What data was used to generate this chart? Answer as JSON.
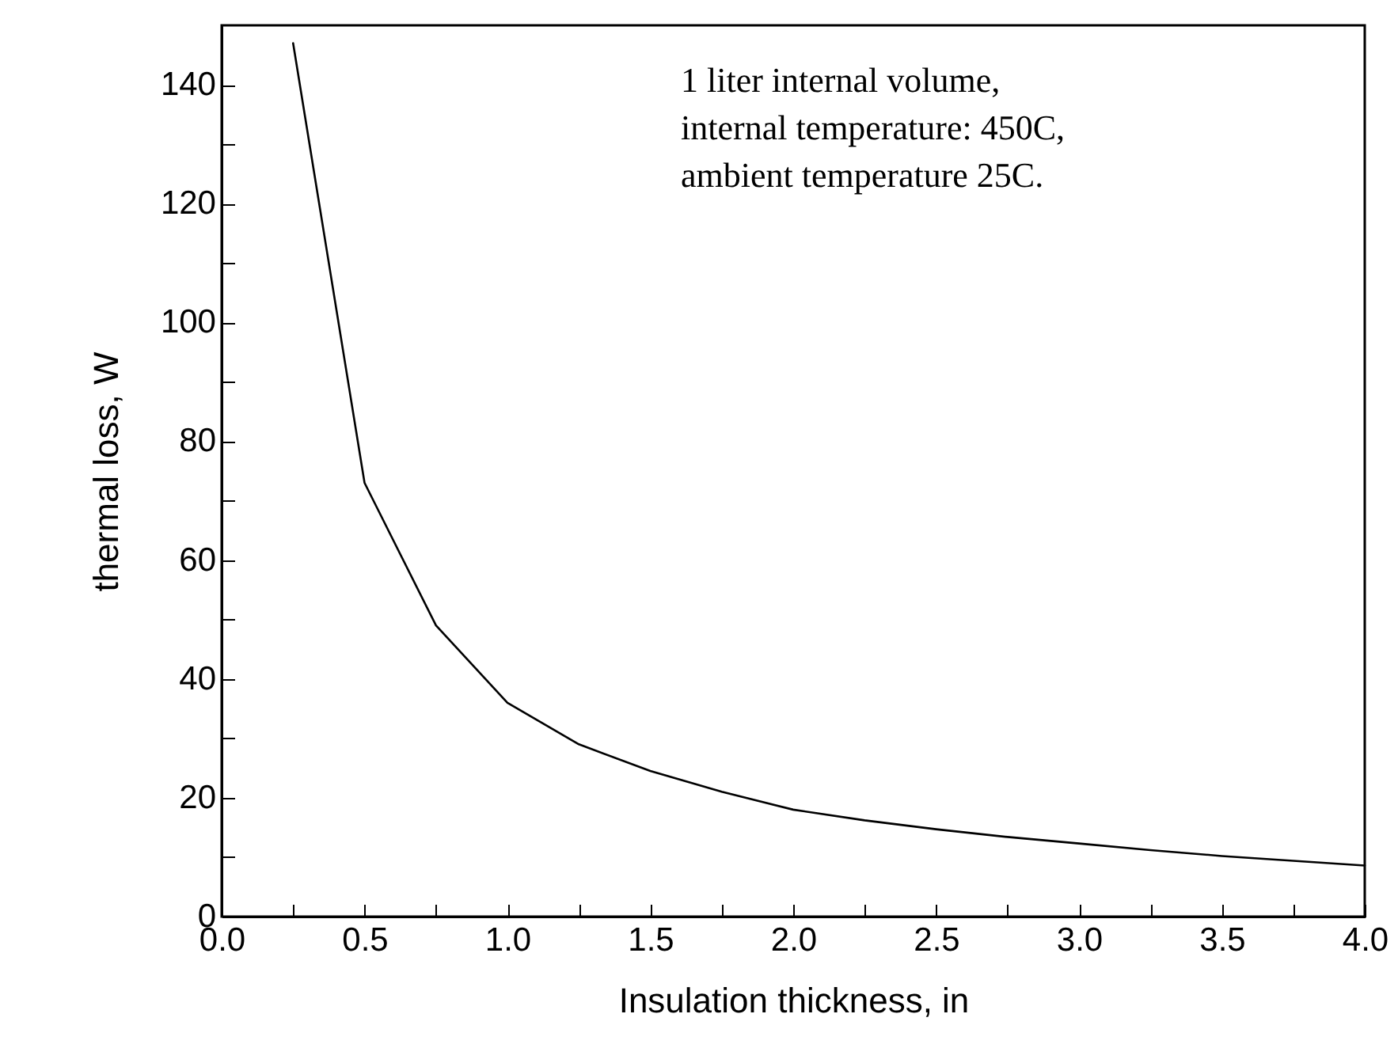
{
  "chart_data": {
    "type": "line",
    "xlabel": "Insulation thickness, in",
    "ylabel": "thermal loss, W",
    "annotations": [
      "1 liter internal volume,",
      "internal temperature: 450C,",
      "ambient temperature 25C."
    ],
    "x": [
      0.25,
      0.5,
      0.75,
      1.0,
      1.25,
      1.5,
      1.75,
      2.0,
      2.25,
      2.5,
      2.75,
      3.0,
      3.25,
      3.5,
      3.75,
      4.0
    ],
    "series": [
      {
        "color": "#000000",
        "values": [
          147,
          73,
          49,
          36,
          29,
          24.5,
          21,
          18,
          16.2,
          14.7,
          13.4,
          12.3,
          11.2,
          10.2,
          9.4,
          8.6
        ]
      }
    ],
    "xlim": [
      0,
      4
    ],
    "ylim": [
      0,
      150
    ],
    "xticks": [
      {
        "value": 0,
        "label": "0.0"
      },
      {
        "value": 0.25,
        "label": null
      },
      {
        "value": 0.5,
        "label": "0.5"
      },
      {
        "value": 0.75,
        "label": null
      },
      {
        "value": 1,
        "label": "1.0"
      },
      {
        "value": 1.25,
        "label": null
      },
      {
        "value": 1.5,
        "label": "1.5"
      },
      {
        "value": 1.75,
        "label": null
      },
      {
        "value": 2,
        "label": "2.0"
      },
      {
        "value": 2.25,
        "label": null
      },
      {
        "value": 2.5,
        "label": "2.5"
      },
      {
        "value": 2.75,
        "label": null
      },
      {
        "value": 3,
        "label": "3.0"
      },
      {
        "value": 3.25,
        "label": null
      },
      {
        "value": 3.5,
        "label": "3.5"
      },
      {
        "value": 3.75,
        "label": null
      },
      {
        "value": 4,
        "label": "4.0"
      }
    ],
    "yticks": [
      0,
      {
        "value": 10,
        "label": null
      },
      20,
      {
        "value": 30,
        "label": null
      },
      40,
      {
        "value": 50,
        "label": null
      },
      60,
      {
        "value": 70,
        "label": null
      },
      80,
      {
        "value": 90,
        "label": null
      },
      100,
      {
        "value": 110,
        "label": null
      },
      120,
      {
        "value": 130,
        "label": null
      },
      140
    ],
    "grid": false,
    "marker": "none",
    "line_style": "solid"
  }
}
